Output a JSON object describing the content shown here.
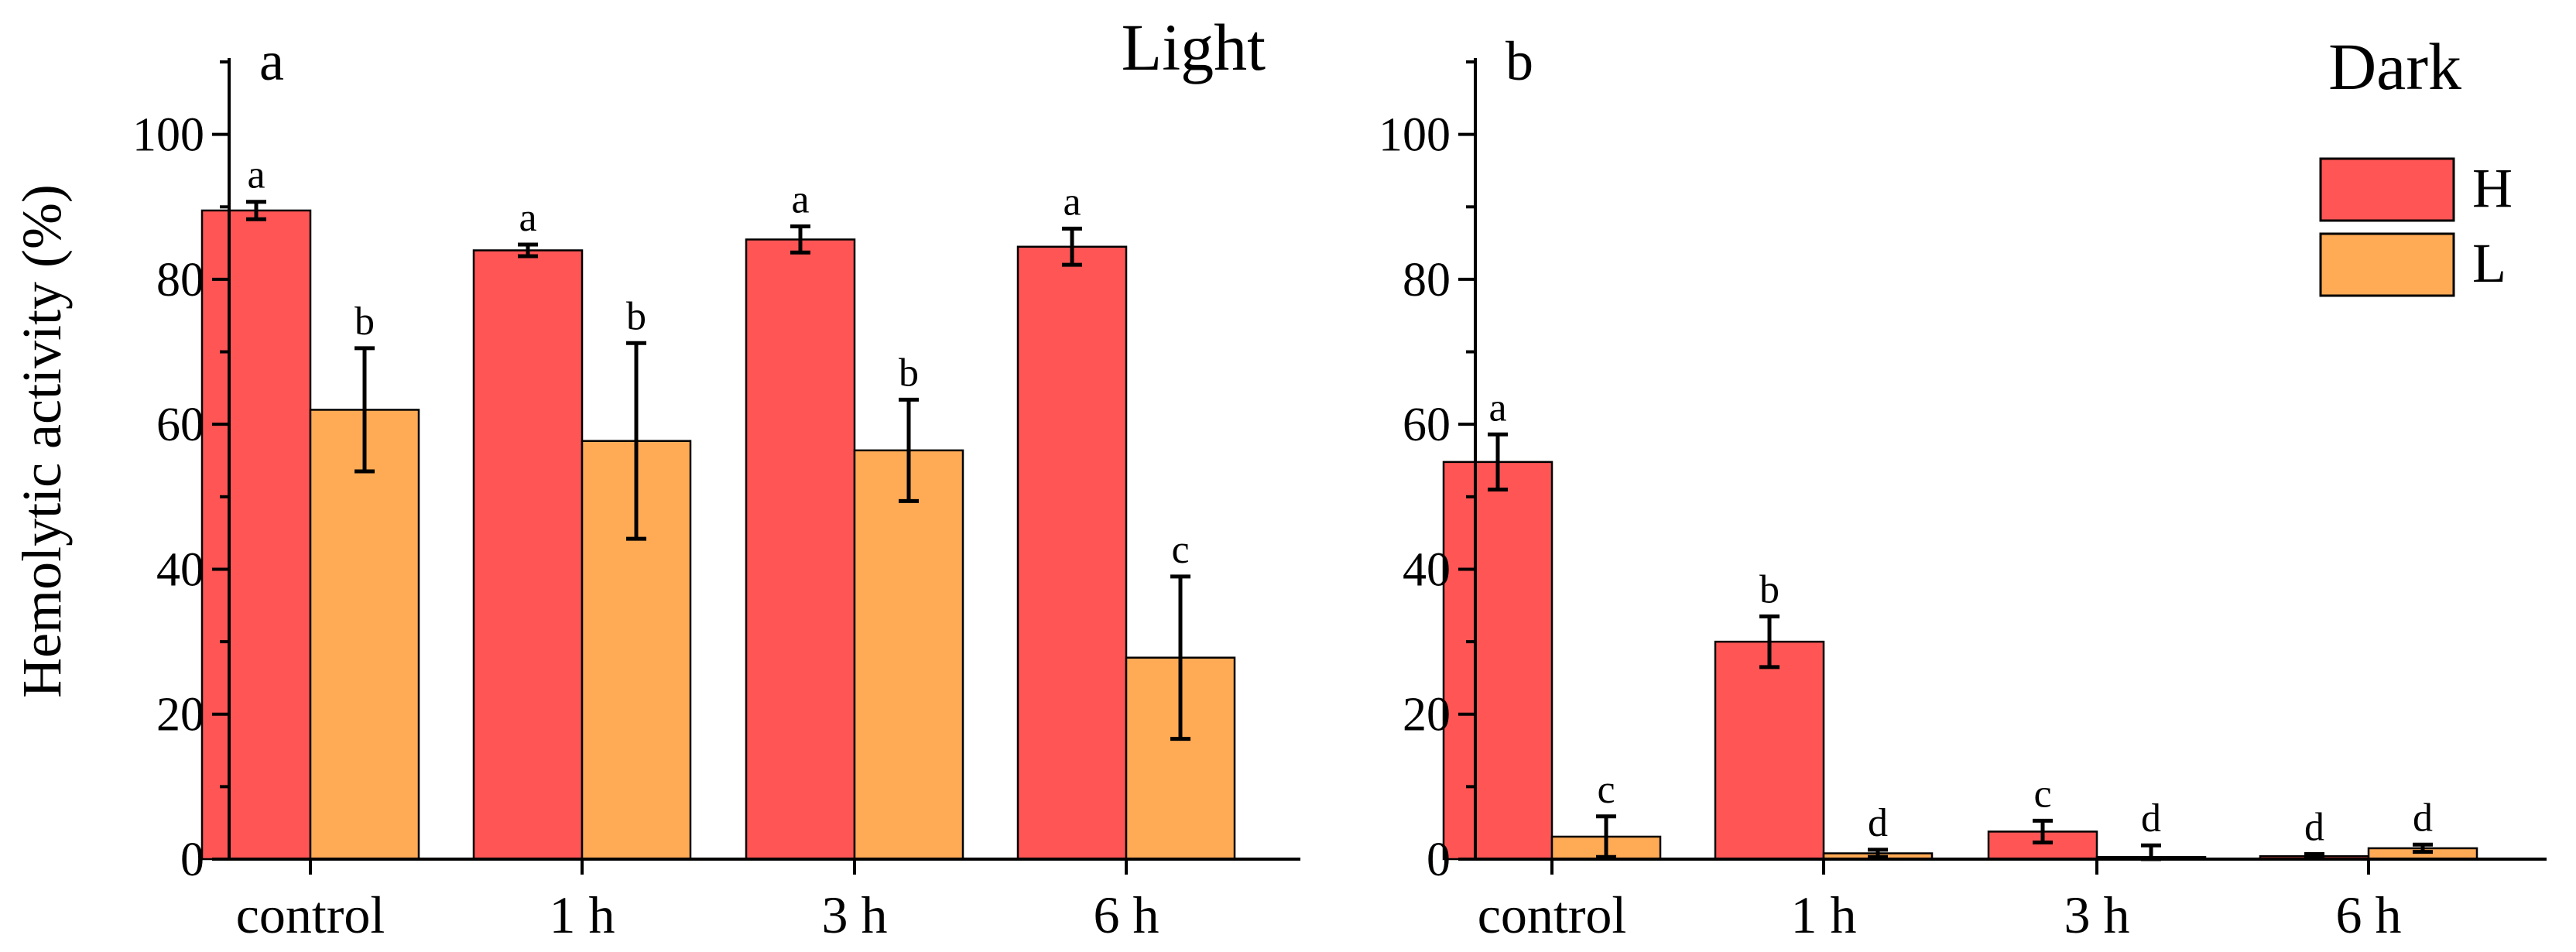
{
  "colors": {
    "H": "#FF5555",
    "L": "#FFAA55"
  },
  "chart_data": [
    {
      "type": "bar",
      "panel": "a",
      "condition": "Light",
      "ylabel": "Hemolytic activity (%)",
      "ylim": [
        0,
        110
      ],
      "yticks": [
        0,
        20,
        40,
        60,
        80,
        100
      ],
      "categories": [
        "control",
        "1 h",
        "3 h",
        "6 h"
      ],
      "series": [
        {
          "name": "H",
          "values": [
            89.5,
            84,
            85.5,
            84.5
          ],
          "errors": [
            1.2,
            0.8,
            1.8,
            2.5
          ],
          "letters": [
            "a",
            "a",
            "a",
            "a"
          ]
        },
        {
          "name": "L",
          "values": [
            62,
            57.7,
            56.4,
            27.8
          ],
          "errors": [
            8.5,
            13.5,
            7,
            11.2
          ],
          "letters": [
            "b",
            "b",
            "b",
            "c"
          ]
        }
      ]
    },
    {
      "type": "bar",
      "panel": "b",
      "condition": "Dark",
      "ylabel": "",
      "ylim": [
        0,
        110
      ],
      "yticks": [
        0,
        20,
        40,
        60,
        80,
        100
      ],
      "categories": [
        "control",
        "1 h",
        "3 h",
        "6 h"
      ],
      "series": [
        {
          "name": "H",
          "values": [
            54.8,
            30,
            3.8,
            0.4
          ],
          "errors": [
            3.8,
            3.5,
            1.5,
            0.3
          ],
          "letters": [
            "a",
            "b",
            "c",
            "d"
          ]
        },
        {
          "name": "L",
          "values": [
            3.1,
            0.8,
            0.3,
            1.5
          ],
          "errors": [
            2.8,
            0.5,
            1.6,
            0.5
          ],
          "letters": [
            "c",
            "d",
            "d",
            "d"
          ]
        }
      ],
      "legend": {
        "placement": "top-right",
        "entries": [
          "H",
          "L"
        ]
      }
    }
  ]
}
